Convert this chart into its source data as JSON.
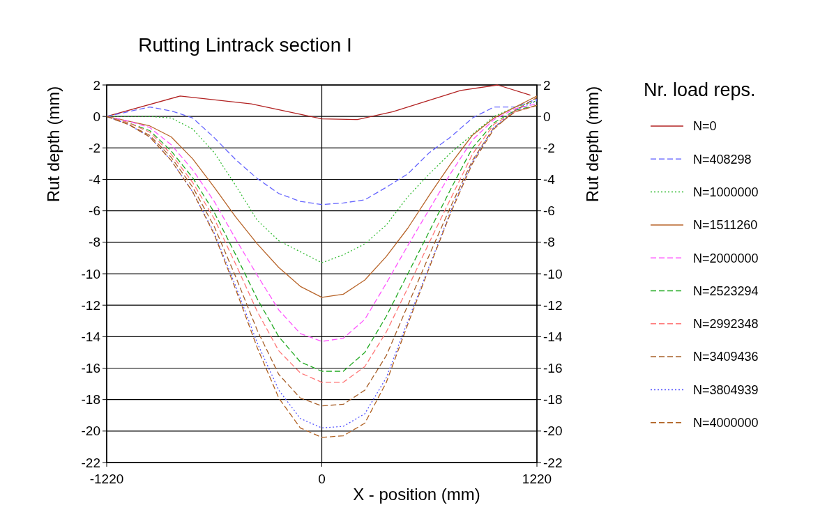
{
  "chart_data": {
    "type": "line",
    "title": "Rutting Lintrack section I",
    "xlabel": "X - position (mm)",
    "ylabel": "Rut depth (mm)",
    "y2label": "Rut depth (mm)",
    "legend_title": "Nr. load reps.",
    "legend": "right",
    "grid": true,
    "x": [
      -1220,
      -1098,
      -976,
      -854,
      -732,
      -610,
      -488,
      -366,
      -244,
      -122,
      0,
      122,
      244,
      366,
      488,
      610,
      732,
      854,
      976,
      1098,
      1220
    ],
    "xlim": [
      -1220,
      1220
    ],
    "xticks": [
      -1220,
      0,
      1220
    ],
    "ylim": [
      -22,
      2
    ],
    "yticks": [
      -22,
      -20,
      -18,
      -16,
      -14,
      -12,
      -10,
      -8,
      -6,
      -4,
      -2,
      0,
      2
    ],
    "y2lim": [
      -22,
      2
    ],
    "y2ticks": [
      -22,
      -20,
      -18,
      -16,
      -14,
      -12,
      -10,
      -8,
      -6,
      -4,
      -2,
      0,
      2
    ],
    "series": [
      {
        "name": "N=0",
        "color": "#b22222",
        "line_style": "solid",
        "x": [
          -1220,
          -803,
          -400,
          0,
          202,
          403,
          787,
          997,
          1183
        ],
        "values": [
          0,
          1.3,
          0.8,
          -0.15,
          -0.2,
          0.3,
          1.65,
          2.0,
          1.35
        ]
      },
      {
        "name": "N=408298",
        "color": "#6666ff",
        "line_style": "dashed",
        "values": [
          0,
          0.3,
          0.6,
          0.35,
          -0.1,
          -1.35,
          -2.75,
          -3.95,
          -4.9,
          -5.4,
          -5.6,
          -5.5,
          -5.3,
          -4.5,
          -3.65,
          -2.3,
          -1.3,
          -0.1,
          0.6,
          0.6,
          1.1
        ]
      },
      {
        "name": "N=1000000",
        "color": "#33bb33",
        "line_style": "dotted",
        "values": [
          0,
          0,
          0,
          -0.1,
          -0.8,
          -2.3,
          -4.4,
          -6.6,
          -7.9,
          -8.6,
          -9.3,
          -8.8,
          -8.1,
          -6.9,
          -5.1,
          -3.65,
          -2.3,
          -1.15,
          0,
          0.6,
          1.0
        ]
      },
      {
        "name": "N=1511260",
        "color": "#b8652a",
        "line_style": "solid",
        "values": [
          0,
          -0.3,
          -0.6,
          -1.3,
          -2.7,
          -4.5,
          -6.4,
          -8.1,
          -9.6,
          -10.8,
          -11.5,
          -11.3,
          -10.4,
          -8.9,
          -7.1,
          -5.0,
          -3.0,
          -1.2,
          -0.1,
          0.6,
          1.3
        ]
      },
      {
        "name": "N=2000000",
        "color": "#ff55ff",
        "line_style": "dashed",
        "values": [
          0,
          -0.3,
          -0.7,
          -1.8,
          -3.4,
          -5.4,
          -7.8,
          -10.1,
          -12.3,
          -13.8,
          -14.3,
          -14.1,
          -12.9,
          -10.6,
          -8.2,
          -5.9,
          -3.6,
          -1.5,
          -0.2,
          0.5,
          0.8
        ]
      },
      {
        "name": "N=2523294",
        "color": "#22aa22",
        "line_style": "dashed",
        "values": [
          0,
          -0.4,
          -0.9,
          -2.2,
          -3.9,
          -6.1,
          -8.8,
          -11.6,
          -14.0,
          -15.6,
          -16.2,
          -16.2,
          -15.0,
          -12.7,
          -10.0,
          -7.3,
          -4.6,
          -2.0,
          -0.4,
          0.4,
          0.7
        ]
      },
      {
        "name": "N=2992348",
        "color": "#ff7777",
        "line_style": "dashed",
        "values": [
          0,
          -0.4,
          -1.0,
          -2.4,
          -4.2,
          -6.5,
          -9.4,
          -12.4,
          -14.9,
          -16.3,
          -16.9,
          -16.9,
          -15.9,
          -13.7,
          -10.9,
          -8.0,
          -5.2,
          -2.4,
          -0.5,
          0.3,
          0.7
        ]
      },
      {
        "name": "N=3409436",
        "color": "#a8602a",
        "line_style": "dashed",
        "values": [
          0,
          -0.5,
          -1.2,
          -2.6,
          -4.5,
          -7.0,
          -10.2,
          -13.6,
          -16.4,
          -17.9,
          -18.4,
          -18.3,
          -17.4,
          -15.2,
          -12.0,
          -8.8,
          -5.7,
          -2.8,
          -0.7,
          0.3,
          0.7
        ]
      },
      {
        "name": "N=3804939",
        "color": "#5555ff",
        "line_style": "dotted",
        "values": [
          0,
          -0.5,
          -1.3,
          -2.8,
          -4.8,
          -7.4,
          -10.8,
          -14.4,
          -17.4,
          -19.2,
          -19.8,
          -19.7,
          -18.9,
          -16.6,
          -13.0,
          -9.5,
          -6.0,
          -2.9,
          -0.7,
          0.4,
          1.0
        ]
      },
      {
        "name": "N=4000000",
        "color": "#b06020",
        "line_style": "dashed",
        "values": [
          0,
          -0.5,
          -1.3,
          -2.8,
          -4.8,
          -7.5,
          -11.0,
          -14.7,
          -17.9,
          -19.8,
          -20.4,
          -20.3,
          -19.5,
          -16.9,
          -13.2,
          -9.6,
          -6.1,
          -3.0,
          -0.8,
          0.4,
          1.2
        ]
      }
    ]
  }
}
